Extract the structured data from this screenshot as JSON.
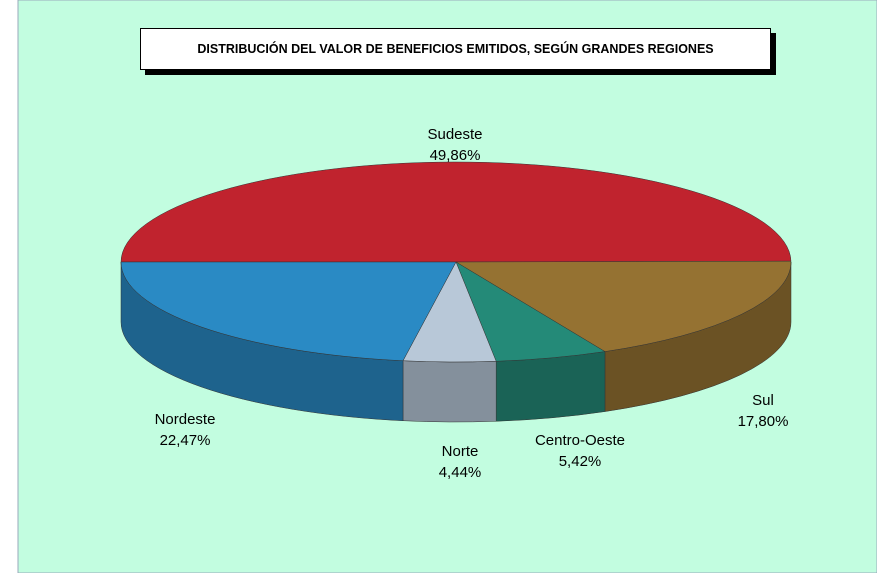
{
  "chart_data": {
    "type": "pie3d",
    "title": "DISTRIBUCIÓN DEL VALOR DE BENEFICIOS EMITIDOS, SEGÚN GRANDES REGIONES",
    "categories": [
      "Sudeste",
      "Sul",
      "Centro-Oeste",
      "Norte",
      "Nordeste"
    ],
    "values": [
      49.86,
      17.8,
      5.42,
      4.44,
      22.47
    ],
    "value_labels": [
      "49,86%",
      "17,80%",
      "5,42%",
      "4,44%",
      "22,47%"
    ],
    "colors": [
      "#c0232e",
      "#957232",
      "#248a78",
      "#b8c8d8",
      "#2a8ac4"
    ]
  }
}
